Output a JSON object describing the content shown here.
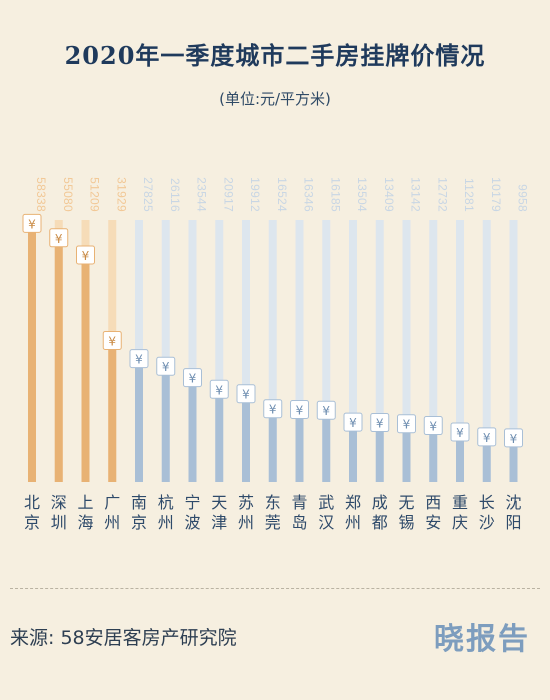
{
  "header": {
    "title": "2020年一季度城市二手房挂牌价情况",
    "unit": "(单位:元/平方米)"
  },
  "footer": {
    "source": "来源: 58安居客房产研究院",
    "brand": "晓报告"
  },
  "colors": {
    "tier1_bar": "#e8b274",
    "tier1_label": "#f2c896",
    "other_bar": "#a9bfd6",
    "other_label": "#c8d6e4",
    "track_tier1": "#f6dcb8",
    "track_other": "#dde6ee",
    "city_text": "#2e4a6a"
  },
  "chart_data": {
    "type": "bar",
    "orientation": "vertical",
    "title": "2020年一季度城市二手房挂牌价情况",
    "ylabel": "",
    "unit": "元/平方米",
    "marker": "¥",
    "categories": [
      "北京",
      "深圳",
      "上海",
      "广州",
      "南京",
      "杭州",
      "宁波",
      "天津",
      "苏州",
      "东莞",
      "青岛",
      "武汉",
      "郑州",
      "成都",
      "无锡",
      "西安",
      "重庆",
      "长沙",
      "沈阳"
    ],
    "values": [
      58338,
      55080,
      51209,
      31929,
      27825,
      26116,
      23544,
      20917,
      19912,
      16524,
      16346,
      16185,
      13504,
      13409,
      13142,
      12732,
      11281,
      10179,
      9958
    ],
    "highlight": [
      "北京",
      "深圳",
      "上海",
      "广州"
    ],
    "ylim": [
      0,
      60000
    ],
    "grid": false,
    "legend": "none"
  }
}
